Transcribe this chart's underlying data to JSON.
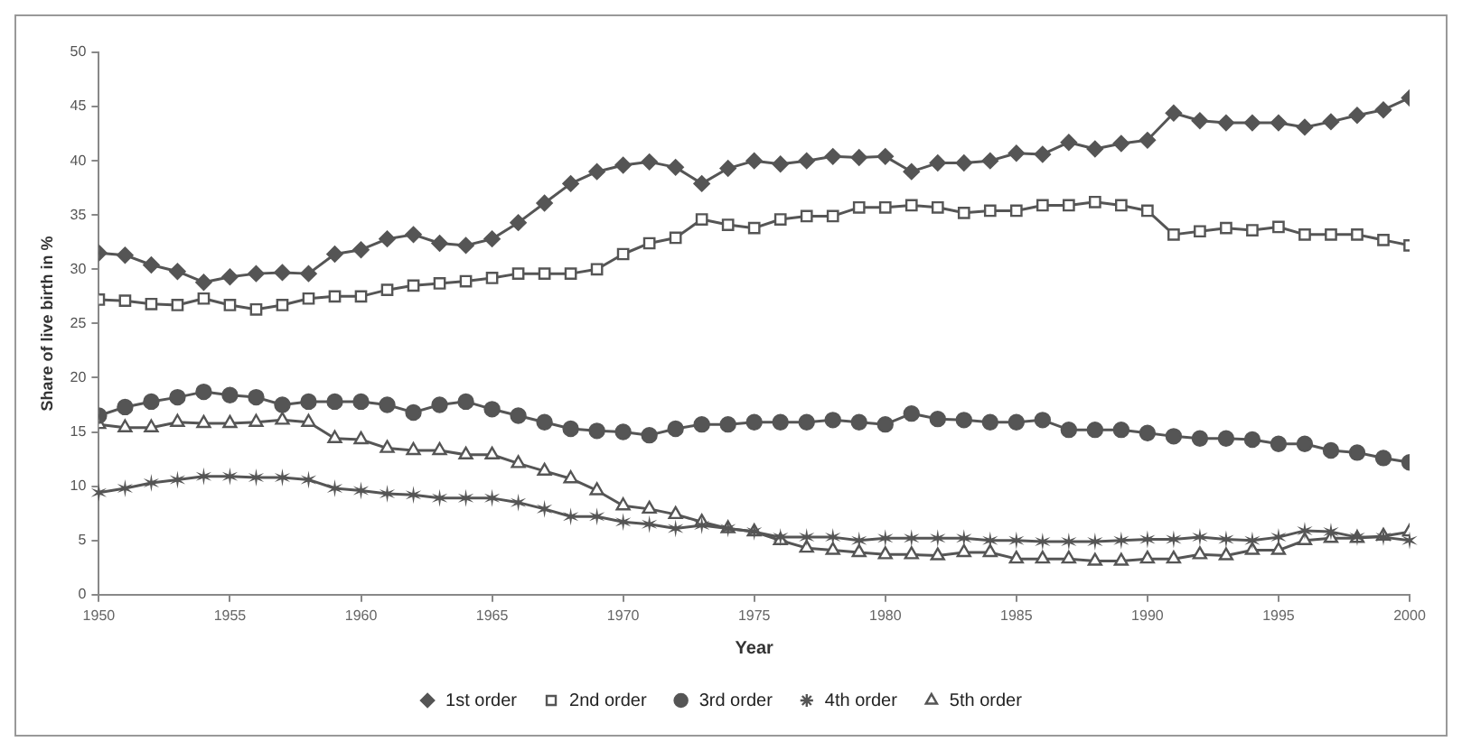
{
  "chart_data": {
    "type": "line",
    "xlabel": "Year",
    "ylabel": "Share of live birth in %",
    "x": [
      1950,
      1951,
      1952,
      1953,
      1954,
      1955,
      1956,
      1957,
      1958,
      1959,
      1960,
      1961,
      1962,
      1963,
      1964,
      1965,
      1966,
      1967,
      1968,
      1969,
      1970,
      1971,
      1972,
      1973,
      1974,
      1975,
      1976,
      1977,
      1978,
      1979,
      1980,
      1981,
      1982,
      1983,
      1984,
      1985,
      1986,
      1987,
      1988,
      1989,
      1990,
      1991,
      1992,
      1993,
      1994,
      1995,
      1996,
      1997,
      1998,
      1999,
      2000
    ],
    "series": [
      {
        "name": "1st order",
        "color": "#555555",
        "marker": "diamond",
        "values": [
          31.5,
          31.3,
          30.4,
          29.8,
          28.8,
          29.3,
          29.6,
          29.7,
          29.6,
          31.4,
          31.8,
          32.8,
          33.2,
          32.4,
          32.2,
          32.8,
          34.3,
          36.1,
          37.9,
          39.0,
          39.6,
          39.9,
          39.4,
          37.9,
          39.3,
          40.0,
          39.7,
          40.0,
          40.4,
          40.3,
          40.4,
          39.0,
          39.8,
          39.8,
          40.0,
          40.7,
          40.6,
          41.7,
          41.1,
          41.6,
          41.9,
          44.4,
          43.7,
          43.5,
          43.5,
          43.5,
          43.1,
          43.6,
          44.2,
          44.7,
          45.8
        ]
      },
      {
        "name": "2nd order",
        "color": "#555555",
        "marker": "square",
        "values": [
          27.2,
          27.1,
          26.8,
          26.7,
          27.3,
          26.7,
          26.3,
          26.7,
          27.3,
          27.5,
          27.5,
          28.1,
          28.5,
          28.7,
          28.9,
          29.2,
          29.6,
          29.6,
          29.6,
          30.0,
          31.4,
          32.4,
          32.9,
          34.6,
          34.1,
          33.8,
          34.6,
          34.9,
          34.9,
          35.7,
          35.7,
          35.9,
          35.7,
          35.2,
          35.4,
          35.4,
          35.9,
          35.9,
          36.2,
          35.9,
          35.4,
          33.2,
          33.5,
          33.8,
          33.6,
          33.9,
          33.2,
          33.2,
          33.2,
          32.7,
          32.2
        ]
      },
      {
        "name": "3rd order",
        "color": "#555555",
        "marker": "circle",
        "values": [
          16.5,
          17.3,
          17.8,
          18.2,
          18.7,
          18.4,
          18.2,
          17.5,
          17.8,
          17.8,
          17.8,
          17.5,
          16.8,
          17.5,
          17.8,
          17.1,
          16.5,
          15.9,
          15.3,
          15.1,
          15.0,
          14.7,
          15.3,
          15.7,
          15.7,
          15.9,
          15.9,
          15.9,
          16.1,
          15.9,
          15.7,
          16.7,
          16.2,
          16.1,
          15.9,
          15.9,
          16.1,
          15.2,
          15.2,
          15.2,
          14.9,
          14.6,
          14.4,
          14.4,
          14.3,
          13.9,
          13.9,
          13.3,
          13.1,
          12.6,
          12.2
        ]
      },
      {
        "name": "4th order",
        "color": "#555555",
        "marker": "cross",
        "values": [
          9.4,
          9.8,
          10.3,
          10.6,
          10.9,
          10.9,
          10.8,
          10.8,
          10.6,
          9.8,
          9.6,
          9.3,
          9.2,
          8.9,
          8.9,
          8.9,
          8.5,
          7.9,
          7.2,
          7.2,
          6.7,
          6.5,
          6.1,
          6.4,
          6.1,
          5.8,
          5.3,
          5.3,
          5.3,
          5.0,
          5.2,
          5.2,
          5.2,
          5.2,
          5.0,
          5.0,
          4.9,
          4.9,
          4.9,
          5.0,
          5.1,
          5.1,
          5.3,
          5.1,
          5.0,
          5.3,
          5.9,
          5.8,
          5.3,
          5.3,
          5.0
        ]
      },
      {
        "name": "5th order",
        "color": "#555555",
        "marker": "triangle",
        "values": [
          15.7,
          15.4,
          15.4,
          15.9,
          15.8,
          15.8,
          15.9,
          16.1,
          15.9,
          14.4,
          14.3,
          13.5,
          13.3,
          13.3,
          12.9,
          12.9,
          12.1,
          11.4,
          10.7,
          9.6,
          8.2,
          7.9,
          7.4,
          6.7,
          6.1,
          5.8,
          5.0,
          4.3,
          4.1,
          3.9,
          3.7,
          3.7,
          3.6,
          3.9,
          3.9,
          3.3,
          3.3,
          3.3,
          3.1,
          3.1,
          3.3,
          3.3,
          3.7,
          3.6,
          4.1,
          4.1,
          5.0,
          5.2,
          5.2,
          5.4,
          5.8
        ]
      }
    ],
    "xlim": [
      1950,
      2000
    ],
    "xticks": [
      1950,
      1955,
      1960,
      1965,
      1970,
      1975,
      1980,
      1985,
      1990,
      1995,
      2000
    ],
    "ylim": [
      0,
      50
    ],
    "yticks": [
      0,
      5,
      10,
      15,
      20,
      25,
      30,
      35,
      40,
      45,
      50
    ],
    "grid": false,
    "legend": "bottom",
    "line_style": "solid"
  }
}
